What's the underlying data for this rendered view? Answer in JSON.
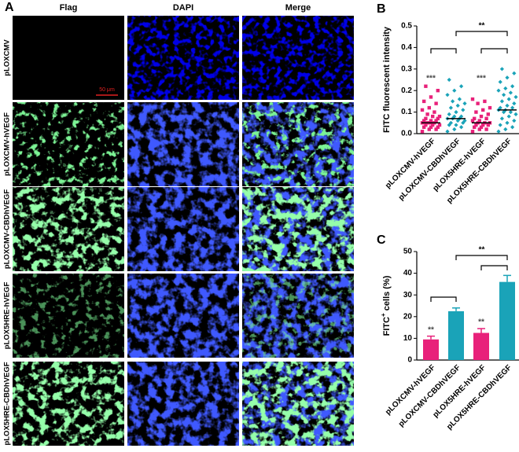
{
  "panel_a": {
    "label": "A",
    "columns": [
      "Flag",
      "DAPI",
      "Merge"
    ],
    "rows": [
      "pLOXCMV",
      "pLOXCMV-hVEGF",
      "pLOXCMV-CBDhVEGF",
      "pLOX5HRE-hVEGF",
      "pLOX5HRE-CBDhVEGF"
    ],
    "scale_bar": "50 μm"
  },
  "chart_data": [
    {
      "type": "strip",
      "panel_label": "B",
      "ylabel": "FITC fluorescent intensity",
      "categories": [
        "pLOXCMV-hVEGF",
        "pLOXCMV-CBDhVEGF",
        "pLOX5HRE-hVEGF",
        "pLOX5HRE-CBDhVEGF"
      ],
      "colors": [
        "#e8217a",
        "#1aa3b8",
        "#e8217a",
        "#1aa3b8"
      ],
      "points": [
        [
          0.01,
          0.02,
          0.02,
          0.03,
          0.03,
          0.03,
          0.04,
          0.04,
          0.04,
          0.05,
          0.05,
          0.05,
          0.05,
          0.06,
          0.06,
          0.06,
          0.07,
          0.07,
          0.08,
          0.08,
          0.09,
          0.1,
          0.11,
          0.12,
          0.14,
          0.15,
          0.17,
          0.2,
          0.22
        ],
        [
          0.01,
          0.02,
          0.03,
          0.04,
          0.04,
          0.05,
          0.05,
          0.06,
          0.06,
          0.07,
          0.07,
          0.07,
          0.08,
          0.08,
          0.09,
          0.1,
          0.11,
          0.12,
          0.13,
          0.14,
          0.15,
          0.16,
          0.18,
          0.2,
          0.22,
          0.25
        ],
        [
          0.01,
          0.02,
          0.02,
          0.03,
          0.03,
          0.04,
          0.04,
          0.04,
          0.05,
          0.05,
          0.05,
          0.06,
          0.06,
          0.07,
          0.07,
          0.08,
          0.09,
          0.1,
          0.11,
          0.12,
          0.14,
          0.15,
          0.16
        ],
        [
          0.01,
          0.02,
          0.03,
          0.04,
          0.05,
          0.06,
          0.07,
          0.08,
          0.09,
          0.1,
          0.1,
          0.11,
          0.11,
          0.12,
          0.12,
          0.13,
          0.14,
          0.15,
          0.16,
          0.17,
          0.18,
          0.19,
          0.2,
          0.21,
          0.22,
          0.24,
          0.26,
          0.28,
          0.3
        ]
      ],
      "medians": [
        0.05,
        0.07,
        0.05,
        0.11
      ],
      "ylim": [
        0,
        0.5
      ],
      "yticks": [
        {
          "value": 0,
          "label": "0.0"
        },
        0.1,
        0.2,
        0.3,
        0.4,
        0.5
      ],
      "group_labels": [
        "***",
        null,
        "***",
        null
      ],
      "brackets": [
        {
          "between": [
            0,
            1
          ]
        },
        {
          "between": [
            2,
            3
          ]
        },
        {
          "between": [
            1,
            3
          ],
          "label": "**"
        }
      ]
    },
    {
      "type": "bar",
      "panel_label": "C",
      "ylabel": [
        "FITC",
        "+",
        " cells (%)"
      ],
      "categories": [
        "pLOXCMV-hVEGF",
        "pLOXCMV-CBDhVEGF",
        "pLOX5HRE-hVEGF",
        "pLOX5HRE-CBDhVEGF"
      ],
      "colors": [
        "#e8217a",
        "#1aa3b8",
        "#e8217a",
        "#1aa3b8"
      ],
      "values": [
        9.5,
        22.5,
        12.5,
        36
      ],
      "errors": [
        1.5,
        1.5,
        2,
        3
      ],
      "ylim": [
        0,
        50
      ],
      "yticks": [
        0,
        10,
        20,
        30,
        40,
        50
      ],
      "group_labels": [
        "**",
        null,
        "**",
        null
      ],
      "brackets": [
        {
          "between": [
            0,
            1
          ]
        },
        {
          "between": [
            2,
            3
          ]
        },
        {
          "between": [
            1,
            3
          ],
          "label": "**"
        }
      ]
    }
  ]
}
